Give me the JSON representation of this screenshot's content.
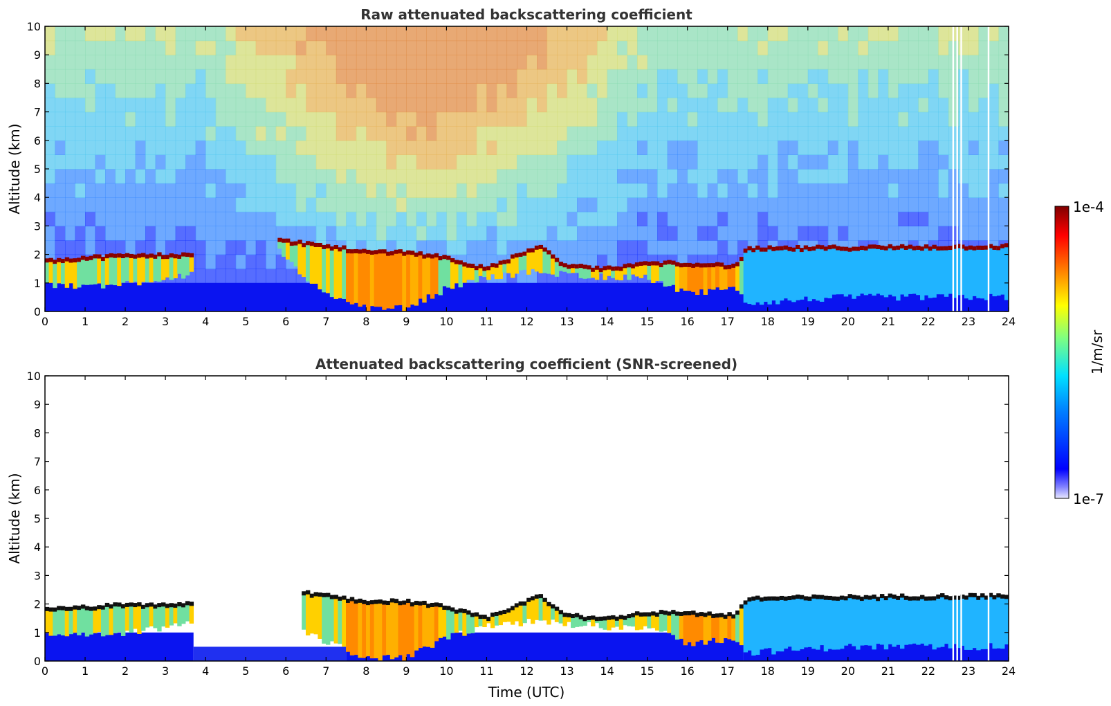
{
  "chart_data": [
    {
      "type": "heatmap",
      "title": "Raw attenuated backscattering coefficient",
      "xlabel": "",
      "ylabel": "Altitude (km)",
      "xlim": [
        0,
        24
      ],
      "ylim": [
        0,
        10
      ],
      "xticks": [
        "0",
        "1",
        "2",
        "3",
        "4",
        "5",
        "6",
        "7",
        "8",
        "9",
        "10",
        "11",
        "12",
        "13",
        "14",
        "15",
        "16",
        "17",
        "18",
        "19",
        "20",
        "21",
        "22",
        "23",
        "24"
      ],
      "yticks": [
        "0",
        "1",
        "2",
        "3",
        "4",
        "5",
        "6",
        "7",
        "8",
        "9",
        "10"
      ],
      "grid": false,
      "colormap": "jet",
      "cloud_base_top_km": [
        {
          "t": 0.0,
          "base": 0.9,
          "top": 1.8
        },
        {
          "t": 1.7,
          "base": 0.9,
          "top": 1.95
        },
        {
          "t": 3.6,
          "base": 1.3,
          "top": 2.0
        },
        {
          "t": 5.8,
          "base": 2.3,
          "top": 2.5
        },
        {
          "t": 6.5,
          "base": 1.0,
          "top": 2.4
        },
        {
          "t": 8.0,
          "base": 0.1,
          "top": 2.1
        },
        {
          "t": 9.0,
          "base": 0.1,
          "top": 2.1
        },
        {
          "t": 10.0,
          "base": 0.8,
          "top": 1.9
        },
        {
          "t": 11.0,
          "base": 1.2,
          "top": 1.5
        },
        {
          "t": 12.3,
          "base": 1.4,
          "top": 2.3
        },
        {
          "t": 13.0,
          "base": 1.3,
          "top": 1.6
        },
        {
          "t": 14.0,
          "base": 1.2,
          "top": 1.5
        },
        {
          "t": 15.0,
          "base": 1.2,
          "top": 1.7
        },
        {
          "t": 16.0,
          "base": 0.6,
          "top": 1.7
        },
        {
          "t": 17.2,
          "base": 0.8,
          "top": 1.6
        },
        {
          "t": 17.5,
          "base": 0.3,
          "top": 2.2
        },
        {
          "t": 20.0,
          "base": 0.5,
          "top": 2.25
        },
        {
          "t": 24.0,
          "base": 0.5,
          "top": 2.3
        }
      ],
      "value_range": [
        "1e-7",
        "1e-4"
      ]
    },
    {
      "type": "heatmap",
      "title": "Attenuated backscattering coefficient (SNR-screened)",
      "xlabel": "Time (UTC)",
      "ylabel": "Altitude (km)",
      "xlim": [
        0,
        24
      ],
      "ylim": [
        0,
        10
      ],
      "xticks": [
        "0",
        "1",
        "2",
        "3",
        "4",
        "5",
        "6",
        "7",
        "8",
        "9",
        "10",
        "11",
        "12",
        "13",
        "14",
        "15",
        "16",
        "17",
        "18",
        "19",
        "20",
        "21",
        "22",
        "23",
        "24"
      ],
      "yticks": [
        "0",
        "1",
        "2",
        "3",
        "4",
        "5",
        "6",
        "7",
        "8",
        "9",
        "10"
      ],
      "grid": false,
      "colormap": "jet",
      "screened": true,
      "value_range": [
        "1e-7",
        "1e-4"
      ]
    }
  ],
  "colorbar": {
    "max_label": "1e-4",
    "min_label": "1e-7",
    "unit_label": "1/m/sr",
    "colors": [
      "#00007f",
      "#0000ff",
      "#007fff",
      "#00ffff",
      "#7fff7f",
      "#ffff00",
      "#ff7f00",
      "#ff0000",
      "#7f0000"
    ]
  }
}
